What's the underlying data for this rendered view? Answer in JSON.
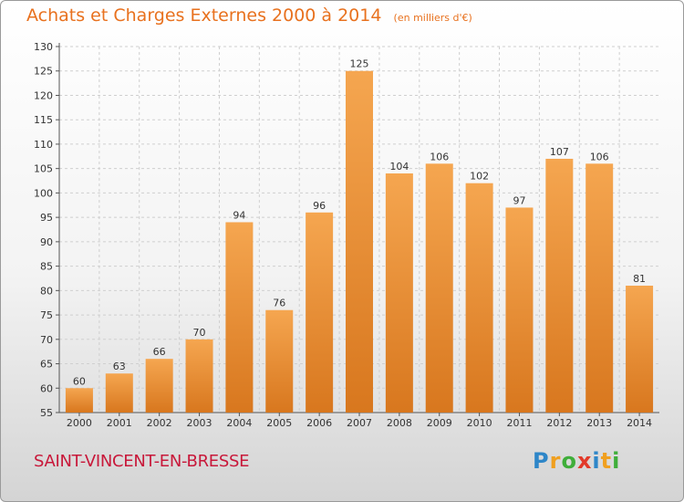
{
  "title": "Achats et Charges Externes 2000 à 2014",
  "unit": "(en milliers d'€)",
  "commune": "SAINT-VINCENT-EN-BRESSE",
  "logo": {
    "text": "Proxiti",
    "letters": [
      {
        "ch": "P",
        "color": "#2E86C8"
      },
      {
        "ch": "r",
        "color": "#F0A020"
      },
      {
        "ch": "o",
        "color": "#3FAE3A"
      },
      {
        "ch": "x",
        "color": "#E23A2A"
      },
      {
        "ch": "i",
        "color": "#2E86C8"
      },
      {
        "ch": "t",
        "color": "#F0A020"
      },
      {
        "ch": "i",
        "color": "#3FAE3A"
      }
    ]
  },
  "colors": {
    "bar_light": "#F5A650",
    "bar_dark": "#D8771E",
    "title": "#E8711E",
    "commune": "#C8183A",
    "grid": "#cfcfcf"
  },
  "chart_data": {
    "type": "bar",
    "title": "Achats et Charges Externes 2000 à 2014",
    "subtitle": "(en milliers d'€)",
    "categories": [
      "2000",
      "2001",
      "2002",
      "2003",
      "2004",
      "2005",
      "2006",
      "2007",
      "2008",
      "2009",
      "2010",
      "2011",
      "2012",
      "2013",
      "2014"
    ],
    "values": [
      60,
      63,
      66,
      70,
      94,
      76,
      96,
      125,
      104,
      106,
      102,
      97,
      107,
      106,
      81
    ],
    "ylim": [
      55,
      130
    ],
    "yticks": [
      55,
      60,
      65,
      70,
      75,
      80,
      85,
      90,
      95,
      100,
      105,
      110,
      115,
      120,
      125,
      130
    ],
    "grid": true,
    "legend": "none"
  }
}
